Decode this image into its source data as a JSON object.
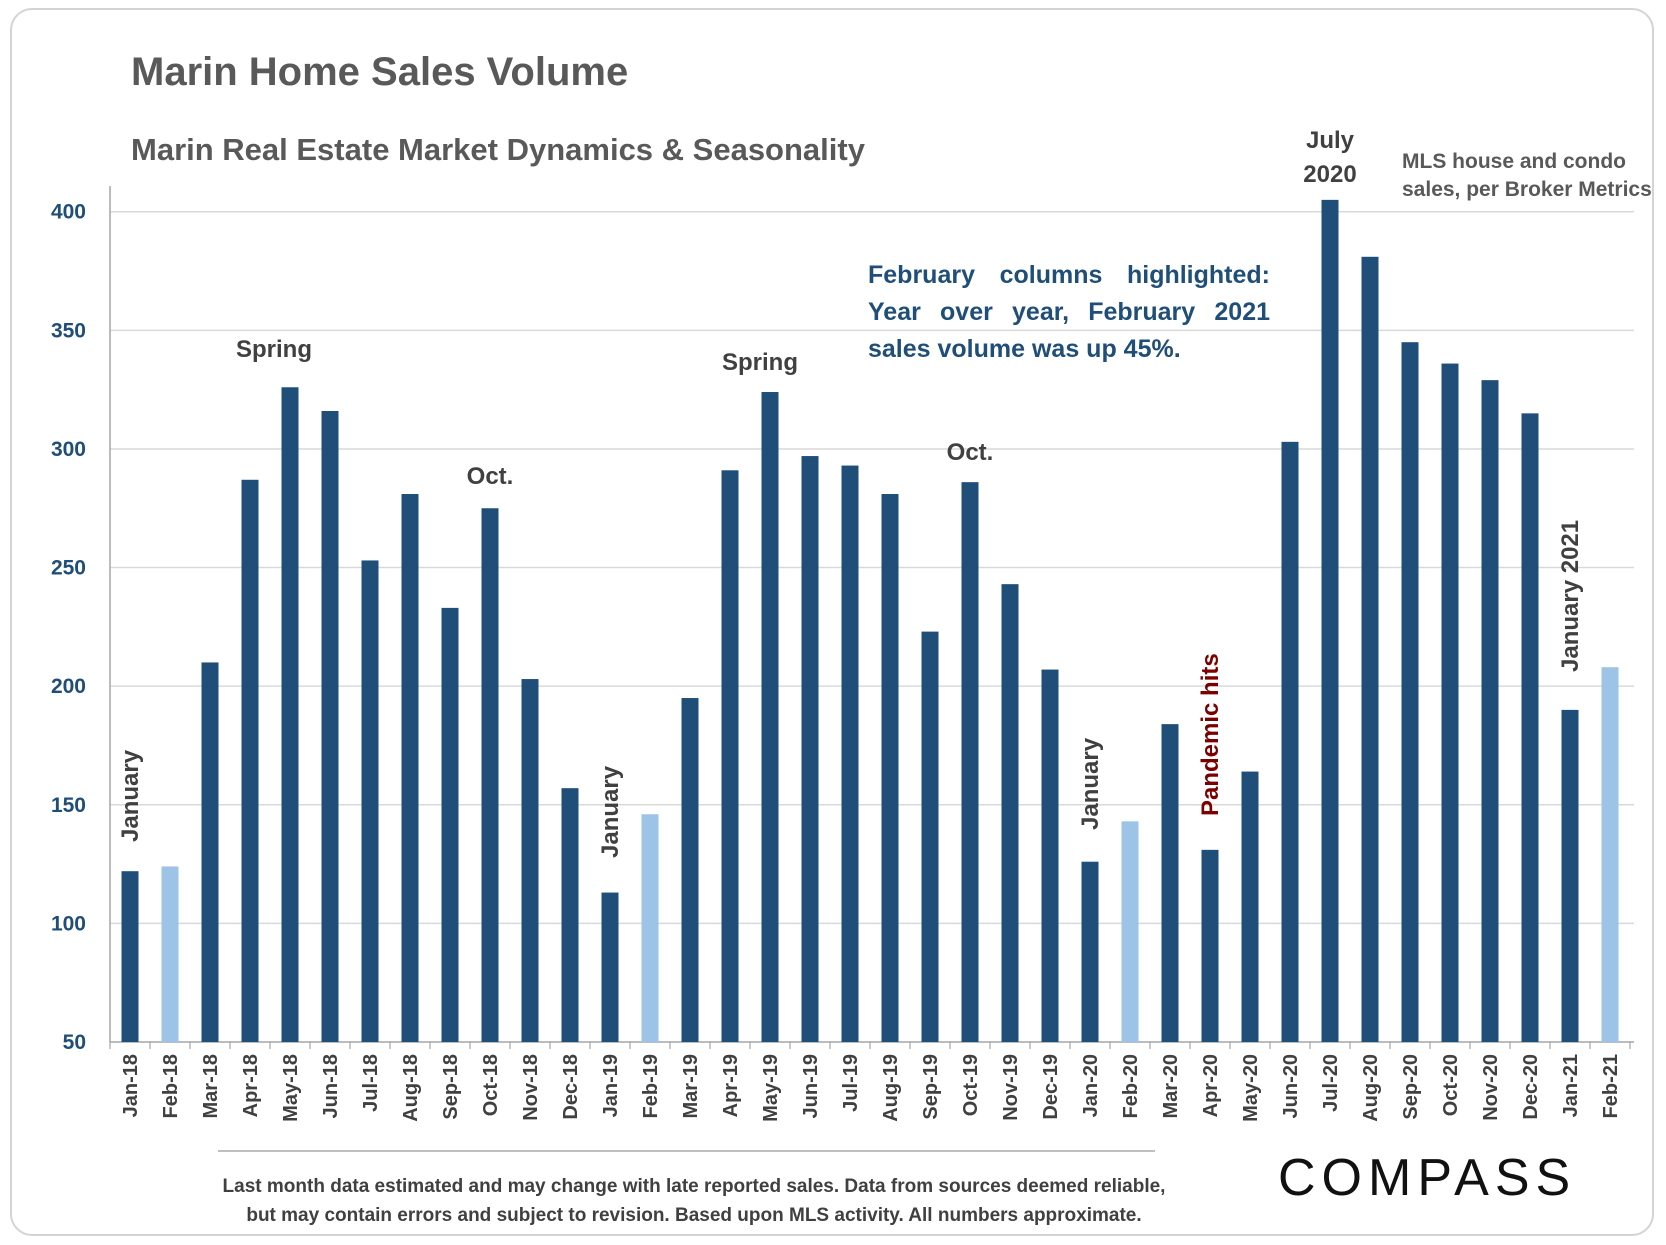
{
  "title": "Marin Home Sales Volume",
  "subtitle": "Marin Real Estate Market Dynamics & Seasonality",
  "source_note": [
    "MLS house and condo",
    "sales, per Broker Metrics"
  ],
  "highlight_note": "February columns highlighted: Year over year, February 2021 sales volume was up 45%.",
  "footnote": [
    "Last month data estimated and may change with late reported sales. Data from sources deemed reliable,",
    "but may contain errors and subject to revision. Based upon MLS activity. All numbers approximate."
  ],
  "logo": "COMPASS",
  "colors": {
    "regular": "#1f4e79",
    "february": "#9dc3e6",
    "grid": "#d9d9d9",
    "axis_text": "#1f4e79",
    "pandemic": "#7b0000"
  },
  "chart_data": {
    "type": "bar",
    "categories": [
      "Jan-18",
      "Feb-18",
      "Mar-18",
      "Apr-18",
      "May-18",
      "Jun-18",
      "Jul-18",
      "Aug-18",
      "Sep-18",
      "Oct-18",
      "Nov-18",
      "Dec-18",
      "Jan-19",
      "Feb-19",
      "Mar-19",
      "Apr-19",
      "May-19",
      "Jun-19",
      "Jul-19",
      "Aug-19",
      "Sep-19",
      "Oct-19",
      "Nov-19",
      "Dec-19",
      "Jan-20",
      "Feb-20",
      "Mar-20",
      "Apr-20",
      "May-20",
      "Jun-20",
      "Jul-20",
      "Aug-20",
      "Sep-20",
      "Oct-20",
      "Nov-20",
      "Dec-20",
      "Jan-21",
      "Feb-21"
    ],
    "values": [
      122,
      124,
      210,
      287,
      326,
      316,
      253,
      281,
      233,
      275,
      203,
      157,
      113,
      146,
      195,
      291,
      324,
      297,
      293,
      281,
      223,
      286,
      243,
      207,
      126,
      143,
      184,
      131,
      164,
      303,
      405,
      381,
      345,
      336,
      329,
      315,
      190,
      208
    ],
    "highlighted": [
      "Feb-18",
      "Feb-19",
      "Feb-20",
      "Feb-21"
    ],
    "ylim": [
      50,
      410
    ],
    "yticks": [
      50,
      100,
      150,
      200,
      250,
      300,
      350,
      400
    ],
    "grid": true,
    "annotations": [
      {
        "text": "January",
        "at": "Jan-18",
        "rotated": true,
        "color": "gray"
      },
      {
        "text": "Spring",
        "at": "Apr-18",
        "rotated": false,
        "color": "gray"
      },
      {
        "text": "Oct.",
        "at": "Oct-18",
        "rotated": false,
        "color": "gray"
      },
      {
        "text": "January",
        "at": "Jan-19",
        "rotated": true,
        "color": "gray"
      },
      {
        "text": "Spring",
        "at": "Apr-19",
        "rotated": false,
        "color": "gray"
      },
      {
        "text": "Oct.",
        "at": "Oct-19",
        "rotated": false,
        "color": "gray"
      },
      {
        "text": "January",
        "at": "Jan-20",
        "rotated": true,
        "color": "gray"
      },
      {
        "text": "Pandemic hits",
        "at": "Apr-20",
        "rotated": true,
        "color": "red"
      },
      {
        "text": "July",
        "at": "Jul-20",
        "rotated": false,
        "color": "gray"
      },
      {
        "text": "2020",
        "at": "Jul-20",
        "rotated": false,
        "color": "gray"
      },
      {
        "text": "January 2021",
        "at": "Jan-21",
        "rotated": true,
        "color": "gray"
      }
    ]
  }
}
